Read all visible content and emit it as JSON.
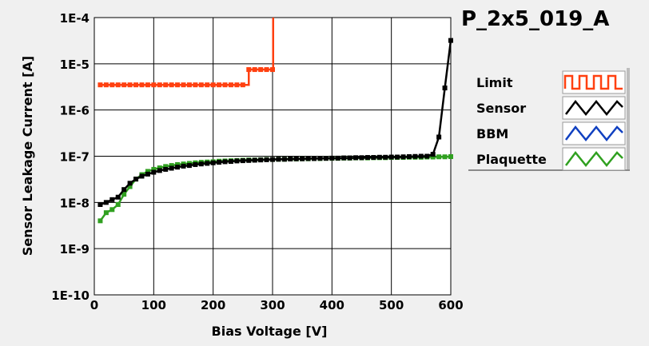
{
  "chart_data": {
    "type": "line",
    "title": "P_2x5_019_A",
    "xlabel": "Bias Voltage [V]",
    "ylabel": "Sensor Leakage Current [A]",
    "x_scale": "linear",
    "y_scale": "log",
    "xlim": [
      0,
      600
    ],
    "ylim": [
      1e-10,
      0.0001
    ],
    "grid": true,
    "legend_position": "right",
    "x_ticks": [
      "0",
      "100",
      "200",
      "300",
      "400",
      "500",
      "600"
    ],
    "x_tick_values": [
      0,
      100,
      200,
      300,
      400,
      500,
      600
    ],
    "y_ticks": [
      "1E-10",
      "1E-9",
      "1E-8",
      "1E-7",
      "1E-6",
      "1E-5",
      "1E-4"
    ],
    "y_tick_values": [
      1e-10,
      1e-09,
      1e-08,
      1e-07,
      1e-06,
      1e-05,
      0.0001
    ],
    "series": [
      {
        "name": "Limit",
        "color": "#ff4010",
        "step": true,
        "x": [
          10,
          20,
          30,
          40,
          50,
          60,
          70,
          80,
          90,
          100,
          110,
          120,
          130,
          140,
          150,
          160,
          170,
          180,
          190,
          200,
          210,
          220,
          230,
          240,
          250,
          260,
          270,
          280,
          290,
          300,
          301
        ],
        "y": [
          3.5e-06,
          3.5e-06,
          3.5e-06,
          3.5e-06,
          3.5e-06,
          3.5e-06,
          3.5e-06,
          3.5e-06,
          3.5e-06,
          3.5e-06,
          3.5e-06,
          3.5e-06,
          3.5e-06,
          3.5e-06,
          3.5e-06,
          3.5e-06,
          3.5e-06,
          3.5e-06,
          3.5e-06,
          3.5e-06,
          3.5e-06,
          3.5e-06,
          3.5e-06,
          3.5e-06,
          3.5e-06,
          7.5e-06,
          7.5e-06,
          7.5e-06,
          7.5e-06,
          7.5e-06,
          0.0001
        ]
      },
      {
        "name": "Sensor",
        "color": "#000000",
        "step": false,
        "x": [
          10,
          20,
          30,
          40,
          50,
          60,
          70,
          80,
          90,
          100,
          110,
          120,
          130,
          140,
          150,
          160,
          170,
          180,
          190,
          200,
          210,
          220,
          230,
          240,
          250,
          260,
          270,
          280,
          290,
          300,
          310,
          320,
          330,
          340,
          350,
          360,
          370,
          380,
          390,
          400,
          410,
          420,
          430,
          440,
          450,
          460,
          470,
          480,
          490,
          500,
          510,
          520,
          530,
          540,
          550,
          560,
          570,
          580,
          590,
          600
        ],
        "y": [
          9e-09,
          1e-08,
          1.15e-08,
          1.3e-08,
          1.9e-08,
          2.6e-08,
          3.2e-08,
          3.7e-08,
          4.1e-08,
          4.5e-08,
          4.9e-08,
          5.2e-08,
          5.5e-08,
          5.8e-08,
          6.1e-08,
          6.3e-08,
          6.6e-08,
          6.8e-08,
          7e-08,
          7.2e-08,
          7.4e-08,
          7.6e-08,
          7.7e-08,
          7.9e-08,
          8e-08,
          8.1e-08,
          8.2e-08,
          8.3e-08,
          8.4e-08,
          8.5e-08,
          8.6e-08,
          8.6e-08,
          8.7e-08,
          8.8e-08,
          8.8e-08,
          8.9e-08,
          8.9e-08,
          9e-08,
          9e-08,
          9.1e-08,
          9.1e-08,
          9.2e-08,
          9.2e-08,
          9.3e-08,
          9.3e-08,
          9.4e-08,
          9.4e-08,
          9.5e-08,
          9.5e-08,
          9.6e-08,
          9.6e-08,
          9.7e-08,
          9.8e-08,
          9.9e-08,
          1e-07,
          1e-07,
          1.1e-07,
          2.6e-07,
          3e-06,
          3.2e-05
        ]
      },
      {
        "name": "BBM",
        "color": "#1040c0",
        "step": false,
        "x": [],
        "y": []
      },
      {
        "name": "Plaquette",
        "color": "#30a020",
        "step": false,
        "x": [
          10,
          20,
          30,
          40,
          50,
          60,
          70,
          80,
          90,
          100,
          110,
          120,
          130,
          140,
          150,
          160,
          170,
          180,
          190,
          200,
          210,
          220,
          230,
          240,
          250,
          260,
          270,
          280,
          290,
          300,
          310,
          320,
          330,
          340,
          350,
          360,
          370,
          380,
          390,
          400,
          410,
          420,
          430,
          440,
          450,
          460,
          470,
          480,
          490,
          500,
          510,
          520,
          530,
          540,
          550,
          560,
          570,
          580,
          590,
          600
        ],
        "y": [
          4e-09,
          6e-09,
          7e-09,
          9e-09,
          1.5e-08,
          2.2e-08,
          3.2e-08,
          4e-08,
          4.7e-08,
          5.2e-08,
          5.6e-08,
          6e-08,
          6.3e-08,
          6.6e-08,
          6.8e-08,
          7e-08,
          7.2e-08,
          7.4e-08,
          7.5e-08,
          7.6e-08,
          7.8e-08,
          7.9e-08,
          8e-08,
          8.1e-08,
          8.2e-08,
          8.3e-08,
          8.3e-08,
          8.4e-08,
          8.5e-08,
          8.5e-08,
          8.6e-08,
          8.6e-08,
          8.7e-08,
          8.7e-08,
          8.8e-08,
          8.8e-08,
          8.9e-08,
          8.9e-08,
          9e-08,
          9e-08,
          9e-08,
          9.1e-08,
          9.1e-08,
          9.2e-08,
          9.2e-08,
          9.2e-08,
          9.3e-08,
          9.3e-08,
          9.3e-08,
          9.4e-08,
          9.4e-08,
          9.4e-08,
          9.5e-08,
          9.5e-08,
          9.5e-08,
          9.6e-08,
          9.6e-08,
          9.7e-08,
          9.7e-08,
          9.8e-08
        ]
      }
    ]
  }
}
